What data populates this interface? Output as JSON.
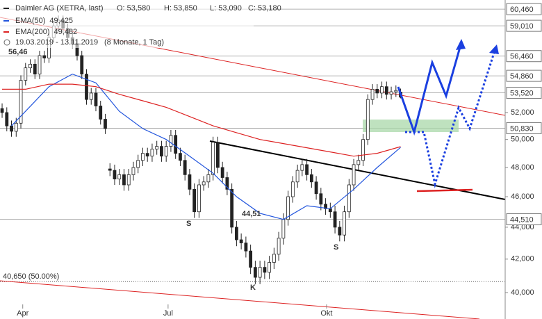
{
  "chart_data": {
    "type": "candlestick",
    "title": "Daimler AG (XETRA, last)",
    "header": [
      "O: 53,580",
      "H: 53,850",
      "L: 53,090",
      "C: 53,180"
    ],
    "period": "19.03.2019 - 13.11.2019",
    "period_note": "(8 Monate, 1 Tag)",
    "log_scale": true,
    "ylim": [
      38.49,
      61.27
    ],
    "xlim": [
      -0.45,
      107.3
    ],
    "yticks": [
      {
        "value": 40,
        "label": "40,000"
      },
      {
        "value": 42,
        "label": "42,000"
      },
      {
        "value": 44,
        "label": "44,000"
      },
      {
        "value": 46,
        "label": "46,000"
      },
      {
        "value": 48,
        "label": "48,000"
      },
      {
        "value": 50,
        "label": "50,000"
      },
      {
        "value": 52,
        "label": "52,000"
      }
    ],
    "xticks": [
      {
        "value": 4.4,
        "label": "Apr"
      },
      {
        "value": 35.4,
        "label": "Jul"
      },
      {
        "value": 69.2,
        "label": "Okt"
      }
    ],
    "levels": [
      {
        "value": 60.46,
        "label": "60,460"
      },
      {
        "value": 59.01,
        "label": "59,010"
      },
      {
        "value": 56.46,
        "label": "56,460"
      },
      {
        "value": 54.86,
        "label": "54,860"
      },
      {
        "value": 53.52,
        "label": "53,520"
      },
      {
        "value": 50.83,
        "label": "50,830"
      },
      {
        "value": 44.51,
        "label": "44,510"
      }
    ],
    "fib_level": {
      "value": 40.65,
      "label": "40,650 (50.00%)"
    },
    "candle_color": "#222222",
    "open": [
      52.3,
      52.0,
      51.0,
      50.6,
      51.2,
      54.5,
      55.5,
      55.8,
      55.0,
      56.5,
      56.3,
      58.0,
      59.0,
      59.5,
      58.8,
      58.0,
      57.5,
      56.5,
      55.0,
      53.0,
      53.5,
      52.5,
      51.5,
      47.9,
      47.8,
      47.2,
      47.5,
      46.8,
      47.5,
      48.0,
      48.5,
      49.0,
      48.8,
      49.3,
      49.5,
      48.8,
      49.5,
      50.3,
      49.0,
      48.5,
      47.5,
      46.5,
      45.0,
      46.8,
      47.0,
      47.5,
      49.8,
      48.0,
      47.3,
      46.5,
      44.0,
      43.2,
      43.0,
      42.5,
      41.5,
      40.9,
      41.5,
      41.2,
      41.8,
      42.3,
      43.3,
      44.5,
      46.0,
      47.0,
      47.8,
      48.2,
      47.5,
      47.0,
      46.2,
      45.5,
      45.2,
      45.0,
      44.0,
      43.5,
      45.0,
      46.8,
      48.2,
      48.5,
      50.0,
      53.0,
      53.8,
      53.5,
      54.0,
      53.4,
      53.6,
      53.58
    ],
    "high": [
      52.7,
      52.4,
      51.4,
      51.6,
      54.9,
      55.9,
      56.2,
      56.2,
      56.9,
      56.9,
      58.4,
      59.4,
      59.9,
      59.9,
      59.2,
      58.4,
      57.9,
      56.9,
      55.4,
      53.9,
      53.9,
      52.9,
      51.9,
      48.3,
      48.2,
      47.9,
      47.9,
      47.9,
      48.4,
      48.9,
      49.4,
      49.4,
      49.7,
      49.9,
      49.9,
      49.9,
      50.7,
      50.7,
      49.4,
      48.9,
      47.9,
      46.9,
      47.2,
      47.4,
      47.9,
      50.2,
      50.2,
      48.4,
      47.7,
      46.9,
      44.4,
      43.6,
      43.4,
      42.9,
      41.9,
      41.9,
      41.9,
      42.2,
      42.7,
      43.7,
      44.9,
      46.4,
      47.4,
      48.2,
      48.6,
      48.6,
      47.9,
      47.4,
      46.6,
      45.9,
      45.6,
      45.4,
      44.4,
      45.4,
      47.2,
      48.6,
      48.9,
      50.4,
      53.4,
      54.2,
      54.2,
      54.4,
      54.4,
      54.0,
      54.1,
      53.85
    ],
    "low": [
      51.6,
      50.6,
      50.2,
      50.2,
      50.8,
      54.1,
      55.1,
      54.6,
      54.6,
      55.9,
      55.9,
      57.6,
      58.6,
      58.4,
      57.6,
      57.1,
      56.1,
      54.6,
      52.6,
      52.6,
      52.1,
      51.1,
      50.4,
      47.4,
      46.8,
      46.8,
      46.4,
      46.4,
      47.1,
      47.6,
      48.1,
      48.4,
      48.4,
      48.9,
      48.4,
      48.4,
      49.1,
      48.6,
      48.1,
      47.1,
      46.1,
      44.6,
      44.6,
      46.4,
      46.6,
      47.1,
      47.6,
      46.9,
      46.1,
      43.6,
      42.8,
      42.6,
      42.1,
      41.1,
      40.5,
      40.5,
      40.8,
      40.8,
      41.4,
      41.9,
      42.9,
      44.1,
      45.6,
      46.6,
      47.4,
      47.1,
      46.6,
      45.8,
      45.1,
      44.8,
      44.6,
      43.6,
      43.1,
      43.1,
      44.6,
      46.4,
      47.8,
      48.1,
      49.6,
      52.6,
      53.1,
      53.1,
      53.0,
      53.0,
      53.2,
      53.09
    ],
    "close": [
      52.0,
      51.0,
      50.6,
      51.2,
      54.5,
      55.5,
      55.8,
      55.0,
      56.5,
      56.3,
      58.0,
      59.0,
      59.5,
      58.8,
      58.0,
      57.5,
      56.5,
      55.0,
      53.0,
      53.5,
      52.5,
      51.5,
      50.8,
      47.8,
      47.2,
      47.5,
      46.8,
      47.5,
      48.0,
      48.5,
      49.0,
      48.8,
      49.3,
      49.5,
      48.8,
      49.5,
      50.3,
      49.0,
      48.5,
      47.5,
      46.5,
      45.0,
      46.8,
      47.0,
      47.5,
      49.8,
      48.0,
      47.3,
      46.5,
      44.0,
      43.2,
      43.0,
      42.5,
      41.5,
      40.9,
      41.5,
      41.2,
      41.8,
      42.3,
      43.3,
      44.5,
      46.0,
      47.0,
      47.8,
      48.2,
      47.5,
      47.0,
      46.2,
      45.5,
      45.2,
      45.0,
      44.0,
      43.5,
      45.0,
      46.8,
      48.2,
      48.5,
      50.0,
      53.0,
      53.8,
      53.5,
      54.0,
      53.4,
      53.6,
      53.7,
      53.18
    ],
    "series": [
      {
        "name": "EMA(50)",
        "color": "#2255dd",
        "last_label": "49,425",
        "x": [
          2,
          5,
          10,
          15,
          20,
          25,
          30,
          35,
          40,
          45,
          50,
          55,
          60,
          65,
          70,
          75,
          80,
          85
        ],
        "values": [
          51.0,
          52.1,
          54.0,
          55.0,
          54.3,
          52.1,
          50.8,
          50.0,
          48.8,
          47.6,
          46.0,
          44.9,
          44.5,
          45.4,
          45.2,
          46.5,
          48.0,
          49.425
        ]
      },
      {
        "name": "EMA(200)",
        "color": "#dd2222",
        "last_label": "49,482",
        "x": [
          0,
          5,
          10,
          15,
          20,
          25,
          30,
          35,
          40,
          45,
          50,
          55,
          60,
          65,
          70,
          75,
          80,
          85
        ],
        "values": [
          53.8,
          53.8,
          54.2,
          54.2,
          54.0,
          53.4,
          52.9,
          52.4,
          51.7,
          51.0,
          50.5,
          50.0,
          49.7,
          49.4,
          49.1,
          48.8,
          49.0,
          49.482
        ]
      }
    ],
    "annotations": [
      "56,46",
      "44,51",
      "S",
      "S",
      "K"
    ]
  }
}
